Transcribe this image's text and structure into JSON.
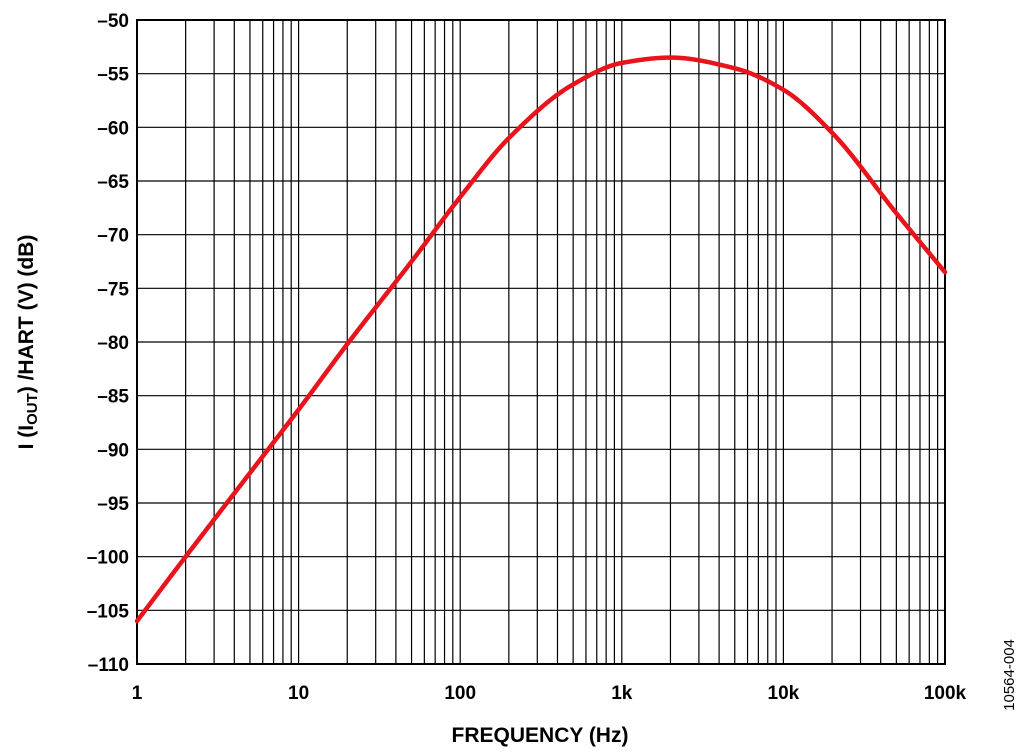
{
  "chart_data": {
    "type": "line",
    "title": "",
    "xlabel": "FREQUENCY (Hz)",
    "ylabel_parts": {
      "prefix": "I (I",
      "subscript": "OUT",
      "suffix": ") /HART (V) (dB)"
    },
    "x_scale": "log",
    "xlim": [
      1,
      100000
    ],
    "ylim": [
      -110,
      -50
    ],
    "grid": true,
    "legend": "none",
    "x_ticks": [
      {
        "value": 1,
        "label": "1"
      },
      {
        "value": 10,
        "label": "10"
      },
      {
        "value": 100,
        "label": "100"
      },
      {
        "value": 1000,
        "label": "1k"
      },
      {
        "value": 10000,
        "label": "10k"
      },
      {
        "value": 100000,
        "label": "100k"
      }
    ],
    "y_ticks": [
      {
        "value": -50,
        "label": "–50"
      },
      {
        "value": -55,
        "label": "–55"
      },
      {
        "value": -60,
        "label": "–60"
      },
      {
        "value": -65,
        "label": "–65"
      },
      {
        "value": -70,
        "label": "–70"
      },
      {
        "value": -75,
        "label": "–75"
      },
      {
        "value": -80,
        "label": "–80"
      },
      {
        "value": -85,
        "label": "–85"
      },
      {
        "value": -90,
        "label": "–90"
      },
      {
        "value": -95,
        "label": "–95"
      },
      {
        "value": -100,
        "label": "–100"
      },
      {
        "value": -105,
        "label": "–105"
      },
      {
        "value": -110,
        "label": "–110"
      }
    ],
    "series": [
      {
        "color": "#e8131b",
        "x": [
          1,
          2,
          5,
          10,
          20,
          50,
          100,
          200,
          500,
          1000,
          2000,
          5000,
          10000,
          20000,
          50000,
          100000
        ],
        "y": [
          -106.0,
          -100.0,
          -92.2,
          -86.3,
          -80.2,
          -72.5,
          -66.5,
          -61.0,
          -56.0,
          -54.0,
          -53.5,
          -54.5,
          -56.5,
          -60.5,
          -68.0,
          -73.5
        ]
      }
    ]
  },
  "figure_id": "10564-004"
}
